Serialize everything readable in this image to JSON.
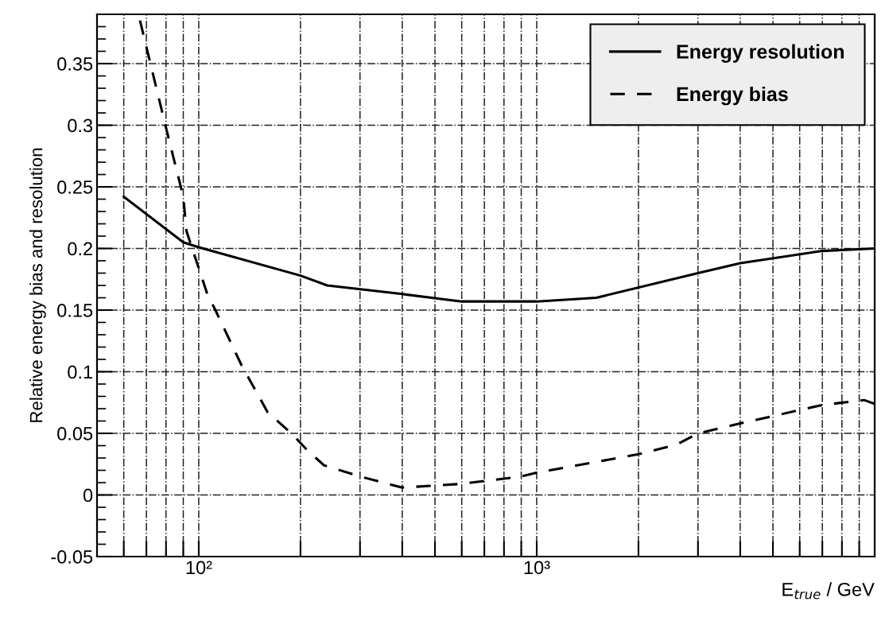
{
  "chart_data": {
    "type": "line",
    "xlabel": "E$_{true}$ / GeV",
    "ylabel": "Relative energy bias and resolution",
    "log": "x",
    "xlim": [
      50,
      10000
    ],
    "ylim": [
      -0.05,
      0.39
    ],
    "xticks": [
      {
        "value": 60,
        "label": null
      },
      {
        "value": 70,
        "label": null
      },
      {
        "value": 80,
        "label": null
      },
      {
        "value": 90,
        "label": null
      },
      {
        "value": 100,
        "label": "10²"
      },
      {
        "value": 200,
        "label": null
      },
      {
        "value": 300,
        "label": null
      },
      {
        "value": 400,
        "label": null
      },
      {
        "value": 500,
        "label": null
      },
      {
        "value": 600,
        "label": null
      },
      {
        "value": 700,
        "label": null
      },
      {
        "value": 800,
        "label": null
      },
      {
        "value": 900,
        "label": null
      },
      {
        "value": 1000,
        "label": "10³"
      },
      {
        "value": 2000,
        "label": null
      },
      {
        "value": 3000,
        "label": null
      },
      {
        "value": 4000,
        "label": null
      },
      {
        "value": 5000,
        "label": null
      },
      {
        "value": 6000,
        "label": null
      },
      {
        "value": 7000,
        "label": null
      },
      {
        "value": 8000,
        "label": null
      },
      {
        "value": 9000,
        "label": null
      }
    ],
    "yticks": [
      -0.05,
      0,
      0.05,
      0.1,
      0.15,
      0.2,
      0.25,
      0.3,
      0.35
    ],
    "grid": true,
    "legend": "top right",
    "series": [
      {
        "name": "Energy resolution",
        "color": "#000000",
        "line_style": "solid",
        "x": [
          60,
          90,
          100,
          200,
          240,
          400,
          600,
          1000,
          1500,
          3000,
          4000,
          7000,
          10000
        ],
        "values": [
          0.242,
          0.205,
          0.201,
          0.178,
          0.17,
          0.163,
          0.157,
          0.157,
          0.16,
          0.18,
          0.188,
          0.198,
          0.2
        ]
      },
      {
        "name": "Energy bias",
        "color": "#000000",
        "line_style": "dashed",
        "x": [
          67,
          80,
          90,
          92,
          106,
          112,
          134,
          160,
          188,
          210,
          235,
          300,
          400,
          600,
          900,
          1000,
          2000,
          2600,
          3000,
          4000,
          7000,
          9300,
          10000
        ],
        "values": [
          0.385,
          0.298,
          0.242,
          0.214,
          0.163,
          0.15,
          0.105,
          0.067,
          0.05,
          0.036,
          0.024,
          0.015,
          0.006,
          0.009,
          0.015,
          0.018,
          0.033,
          0.041,
          0.05,
          0.058,
          0.073,
          0.077,
          0.074
        ]
      }
    ]
  }
}
